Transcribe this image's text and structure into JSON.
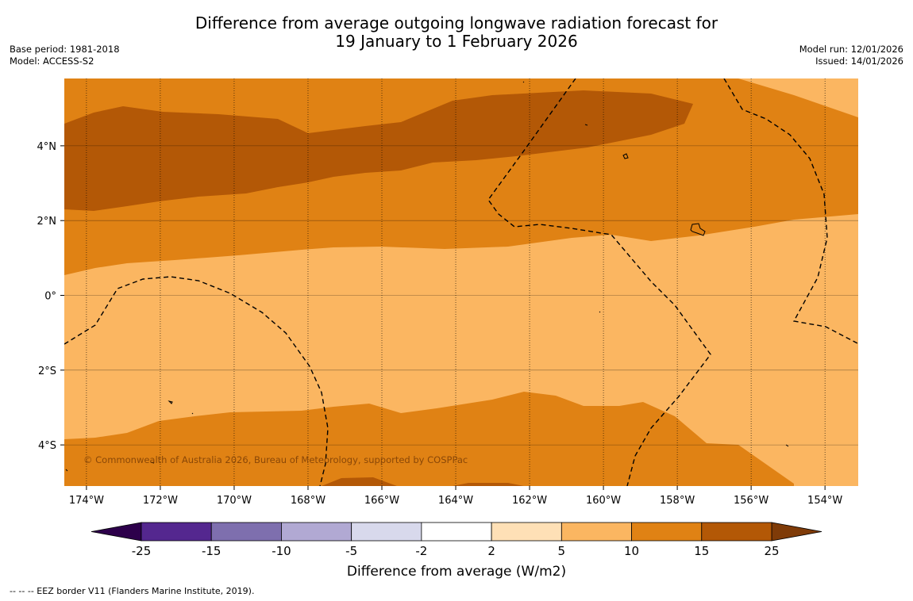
{
  "title_line1": "Difference from average outgoing longwave radiation forecast for",
  "title_line2": "19 January to 1 February 2026",
  "base_period": "Base period: 1981-2018",
  "model": "Model: ACCESS-S2",
  "model_run": "Model run: 12/01/2026",
  "issued": "Issued: 14/01/2026",
  "copyright": "© Commonwealth of Australia 2026, Bureau of Meteorology, supported by COSPPac",
  "footer_note": "-- -- -- EEZ border V11 (Flanders Marine Institute, 2019).",
  "map": {
    "lon_range": [
      -174.6,
      -153.1
    ],
    "lat_range": [
      -5.1,
      5.8
    ],
    "lon_ticks": [
      {
        "value": -174,
        "label": "174°W"
      },
      {
        "value": -172,
        "label": "172°W"
      },
      {
        "value": -170,
        "label": "170°W"
      },
      {
        "value": -168,
        "label": "168°W"
      },
      {
        "value": -166,
        "label": "166°W"
      },
      {
        "value": -164,
        "label": "164°W"
      },
      {
        "value": -162,
        "label": "162°W"
      },
      {
        "value": -160,
        "label": "160°W"
      },
      {
        "value": -158,
        "label": "158°W"
      },
      {
        "value": -156,
        "label": "156°W"
      },
      {
        "value": -154,
        "label": "154°W"
      }
    ],
    "lat_ticks": [
      {
        "value": 4,
        "label": "4°N"
      },
      {
        "value": 2,
        "label": "2°N"
      },
      {
        "value": 0,
        "label": "0°"
      },
      {
        "value": -2,
        "label": "2°S"
      },
      {
        "value": -4,
        "label": "4°S"
      }
    ]
  },
  "colorbar": {
    "label": "Difference from average (W/m2)",
    "ticks": [
      "-25",
      "-15",
      "-10",
      "-5",
      "-2",
      "2",
      "5",
      "10",
      "15",
      "25"
    ],
    "colors": [
      "#54278f",
      "#7e6fae",
      "#b1a9d3",
      "#d8d9ec",
      "#ffffff",
      "#fee0b6",
      "#fbb661",
      "#e08214",
      "#b35806"
    ],
    "extend_low_color": "#2d004b",
    "extend_high_color": "#7f3b08"
  },
  "fill_colors": {
    "band_5_10": "#fbb661",
    "band_10_15": "#e08214",
    "band_15_25": "#b35806"
  }
}
